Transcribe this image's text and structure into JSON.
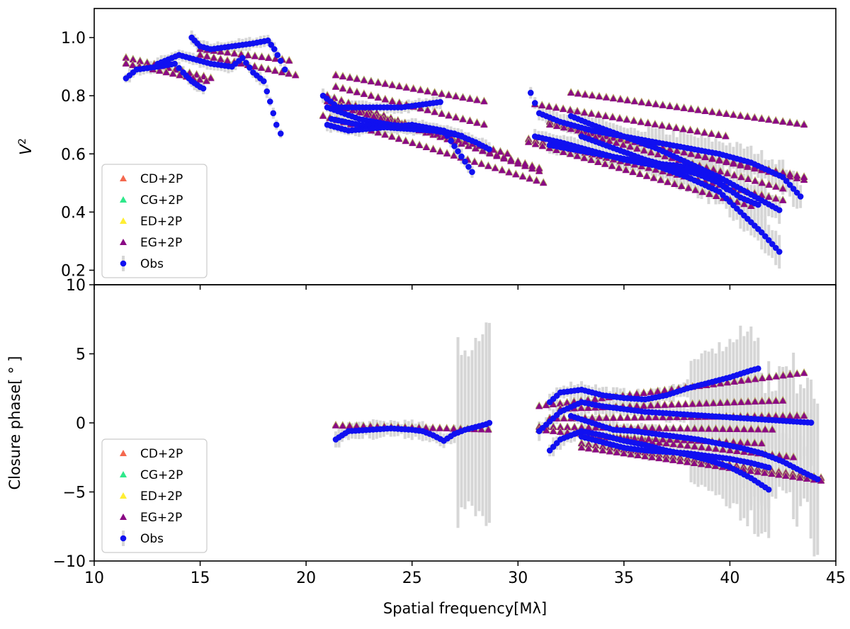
{
  "chart_data": [
    {
      "type": "scatter",
      "panel": "top",
      "ylabel_main": "V",
      "ylabel_sup": "2",
      "xlim": [
        10,
        45
      ],
      "ylim": [
        0.15,
        1.1
      ],
      "yticks": [
        0.2,
        0.4,
        0.6,
        0.8,
        1.0
      ],
      "ytick_labels": [
        "0.2",
        "0.4",
        "0.6",
        "0.8",
        "1.0"
      ],
      "grid": false,
      "legend_position": "bottom-left",
      "legend": [
        {
          "label": "CD+2P",
          "marker": "triangle",
          "color": "#f4684e"
        },
        {
          "label": "CG+2P",
          "marker": "triangle",
          "color": "#2ee88a"
        },
        {
          "label": "ED+2P",
          "marker": "triangle",
          "color": "#ffee33"
        },
        {
          "label": "EG+2P",
          "marker": "triangle",
          "color": "#8a0a84"
        },
        {
          "label": "Obs",
          "marker": "circle",
          "color": "#1010f0"
        }
      ],
      "model_tracks": [
        {
          "x0": 11.5,
          "x1": 15.5,
          "y0": 0.93,
          "y1": 0.86
        },
        {
          "x0": 11.5,
          "x1": 15.3,
          "y0": 0.91,
          "y1": 0.85
        },
        {
          "x0": 15.0,
          "x1": 19.5,
          "y0": 0.94,
          "y1": 0.87
        },
        {
          "x0": 15.0,
          "x1": 19.2,
          "y0": 0.96,
          "y1": 0.92
        },
        {
          "x0": 21.4,
          "x1": 28.4,
          "y0": 0.87,
          "y1": 0.78
        },
        {
          "x0": 21.4,
          "x1": 28.4,
          "y0": 0.83,
          "y1": 0.7
        },
        {
          "x0": 21.0,
          "x1": 31.0,
          "y0": 0.8,
          "y1": 0.54
        },
        {
          "x0": 21.0,
          "x1": 31.0,
          "y0": 0.78,
          "y1": 0.55
        },
        {
          "x0": 21.2,
          "x1": 29.5,
          "y0": 0.77,
          "y1": 0.6
        },
        {
          "x0": 20.8,
          "x1": 31.2,
          "y0": 0.73,
          "y1": 0.5
        },
        {
          "x0": 32.5,
          "x1": 43.5,
          "y0": 0.81,
          "y1": 0.7
        },
        {
          "x0": 30.8,
          "x1": 39.8,
          "y0": 0.77,
          "y1": 0.66
        },
        {
          "x0": 31.5,
          "x1": 43.5,
          "y0": 0.71,
          "y1": 0.51
        },
        {
          "x0": 31.5,
          "x1": 43.5,
          "y0": 0.7,
          "y1": 0.52
        },
        {
          "x0": 33.0,
          "x1": 42.5,
          "y0": 0.67,
          "y1": 0.48
        },
        {
          "x0": 30.5,
          "x1": 42.5,
          "y0": 0.65,
          "y1": 0.44
        },
        {
          "x0": 30.5,
          "x1": 41.0,
          "y0": 0.64,
          "y1": 0.42
        }
      ],
      "obs_tracks": [
        {
          "x": [
            11.5,
            12.0,
            13.0,
            13.8,
            14.2,
            14.6,
            15.0,
            15.3
          ],
          "y": [
            0.86,
            0.89,
            0.9,
            0.91,
            0.88,
            0.85,
            0.83,
            0.82
          ]
        },
        {
          "x": [
            14.6,
            15.0,
            15.5,
            16.5,
            17.5,
            18.2,
            18.5,
            18.8,
            19.2
          ],
          "y": [
            1.0,
            0.97,
            0.96,
            0.97,
            0.98,
            0.99,
            0.96,
            0.92,
            0.86
          ]
        },
        {
          "x": [
            13.0,
            14.0,
            15.5,
            16.5,
            17.0,
            17.5,
            18.0,
            18.3,
            18.6,
            19.0
          ],
          "y": [
            0.91,
            0.94,
            0.91,
            0.9,
            0.93,
            0.88,
            0.85,
            0.78,
            0.7,
            0.64
          ]
        },
        {
          "x": [
            20.8,
            21.5,
            22.5,
            23.5,
            24.5,
            25.5,
            26.5
          ],
          "y": [
            0.8,
            0.76,
            0.76,
            0.76,
            0.76,
            0.77,
            0.78
          ]
        },
        {
          "x": [
            21.0,
            22.5,
            24.0,
            25.5,
            27.0,
            28.0,
            28.8
          ],
          "y": [
            0.76,
            0.72,
            0.7,
            0.69,
            0.67,
            0.64,
            0.61
          ]
        },
        {
          "x": [
            21.2,
            22.5,
            24.0,
            26.0,
            27.5
          ],
          "y": [
            0.72,
            0.7,
            0.69,
            0.68,
            0.66
          ]
        },
        {
          "x": [
            21.0,
            22.0,
            23.5,
            25.0,
            26.5,
            28.0
          ],
          "y": [
            0.7,
            0.68,
            0.69,
            0.7,
            0.68,
            0.52
          ]
        },
        {
          "x": [
            30.6,
            31.0,
            32.0,
            33.5,
            35.0,
            36.5,
            38.0,
            39.5,
            41.0,
            42.5,
            43.5
          ],
          "y": [
            0.81,
            0.74,
            0.71,
            0.68,
            0.66,
            0.64,
            0.62,
            0.6,
            0.57,
            0.52,
            0.44
          ]
        },
        {
          "x": [
            32.5,
            33.5,
            35.0,
            36.5,
            38.0,
            39.5,
            41.0,
            42.5
          ],
          "y": [
            0.73,
            0.7,
            0.66,
            0.62,
            0.57,
            0.52,
            0.46,
            0.4
          ]
        },
        {
          "x": [
            30.8,
            32.0,
            33.5,
            35.0,
            36.5,
            38.0,
            39.5,
            40.5,
            41.5,
            42.5
          ],
          "y": [
            0.66,
            0.64,
            0.61,
            0.58,
            0.56,
            0.52,
            0.47,
            0.4,
            0.33,
            0.25
          ]
        },
        {
          "x": [
            31.5,
            33.0,
            34.5,
            36.0,
            37.5,
            38.8,
            40.0
          ],
          "y": [
            0.63,
            0.61,
            0.59,
            0.57,
            0.56,
            0.54,
            0.47
          ]
        },
        {
          "x": [
            33.0,
            34.5,
            36.0,
            37.5,
            38.5,
            39.5,
            40.5,
            41.5
          ],
          "y": [
            0.66,
            0.62,
            0.58,
            0.55,
            0.53,
            0.5,
            0.45,
            0.42
          ]
        }
      ]
    },
    {
      "type": "scatter",
      "panel": "bottom",
      "ylabel": "Closure phase[ ° ]",
      "xlabel": "Spatial frequency[Mλ]",
      "xlim": [
        10,
        45
      ],
      "ylim": [
        -10,
        10
      ],
      "xticks": [
        10,
        15,
        20,
        25,
        30,
        35,
        40,
        45
      ],
      "xtick_labels": [
        "10",
        "15",
        "20",
        "25",
        "30",
        "35",
        "40",
        "45"
      ],
      "yticks": [
        -10,
        -5,
        0,
        5,
        10
      ],
      "ytick_labels": [
        "−10",
        "−5",
        "0",
        "5",
        "10"
      ],
      "grid": false,
      "legend_position": "bottom-left",
      "legend": [
        {
          "label": "CD+2P",
          "marker": "triangle",
          "color": "#f4684e"
        },
        {
          "label": "CG+2P",
          "marker": "triangle",
          "color": "#2ee88a"
        },
        {
          "label": "ED+2P",
          "marker": "triangle",
          "color": "#ffee33"
        },
        {
          "label": "EG+2P",
          "marker": "triangle",
          "color": "#8a0a84"
        },
        {
          "label": "Obs",
          "marker": "circle",
          "color": "#1010f0"
        }
      ],
      "model_tracks": [
        {
          "x0": 21.4,
          "x1": 28.6,
          "y0": -0.2,
          "y1": -0.5
        },
        {
          "x0": 31.0,
          "x1": 43.5,
          "y0": 1.2,
          "y1": 3.6
        },
        {
          "x0": 32.0,
          "x1": 42.5,
          "y0": 1.0,
          "y1": 1.6
        },
        {
          "x0": 31.5,
          "x1": 43.5,
          "y0": 0.3,
          "y1": 0.5
        },
        {
          "x0": 31.0,
          "x1": 42.0,
          "y0": -0.3,
          "y1": -0.5
        },
        {
          "x0": 31.0,
          "x1": 43.0,
          "y0": -0.5,
          "y1": -2.5
        },
        {
          "x0": 33.0,
          "x1": 44.3,
          "y0": -1.5,
          "y1": -4.0
        },
        {
          "x0": 33.5,
          "x1": 41.5,
          "y0": -1.0,
          "y1": -1.5
        },
        {
          "x0": 33.0,
          "x1": 44.3,
          "y0": -1.8,
          "y1": -4.2
        }
      ],
      "obs_tracks": [
        {
          "x": [
            21.4,
            22.0,
            23.0,
            24.0,
            25.0,
            25.5,
            26.0,
            26.5,
            27.0,
            27.5,
            28.0,
            28.5,
            28.8
          ],
          "y": [
            -1.2,
            -0.6,
            -0.5,
            -0.4,
            -0.5,
            -0.6,
            -0.9,
            -1.3,
            -0.8,
            -0.5,
            -0.3,
            -0.1,
            0.1
          ]
        },
        {
          "x": [
            31.5,
            32.0,
            33.0,
            34.0,
            35.0,
            36.0,
            37.0,
            38.0,
            39.0,
            40.0,
            41.0,
            41.5
          ],
          "y": [
            1.5,
            2.2,
            2.4,
            2.0,
            1.8,
            1.7,
            2.0,
            2.5,
            2.9,
            3.3,
            3.8,
            4.0
          ]
        },
        {
          "x": [
            31.5,
            32.0,
            33.0,
            34.0,
            35.0,
            36.0,
            37.0,
            38.0,
            39.0,
            40.0,
            41.0,
            42.0
          ],
          "y": [
            -2.0,
            -1.2,
            -0.6,
            -0.9,
            -1.3,
            -1.6,
            -2.0,
            -2.3,
            -2.7,
            -3.2,
            -4.0,
            -5.0
          ]
        },
        {
          "x": [
            31.0,
            32.0,
            33.0,
            34.0,
            35.0,
            36.0,
            37.0,
            38.0,
            39.0,
            40.0,
            41.0,
            42.0,
            43.0,
            44.0
          ],
          "y": [
            -0.6,
            0.8,
            1.5,
            1.2,
            1.0,
            0.8,
            0.7,
            0.6,
            0.5,
            0.4,
            0.3,
            0.2,
            0.1,
            0.0
          ]
        },
        {
          "x": [
            32.5,
            33.5,
            34.5,
            35.5,
            36.5,
            37.5,
            38.5,
            39.5,
            40.5,
            41.5,
            42.5,
            43.5,
            44.3
          ],
          "y": [
            0.5,
            0.0,
            -0.5,
            -0.6,
            -0.8,
            -1.0,
            -1.2,
            -1.5,
            -1.8,
            -2.2,
            -2.8,
            -3.6,
            -4.2
          ]
        },
        {
          "x": [
            33.0,
            34.0,
            35.0,
            36.0,
            37.0,
            38.0,
            39.0,
            40.0,
            41.0,
            42.0
          ],
          "y": [
            -1.0,
            -1.4,
            -1.8,
            -2.0,
            -2.1,
            -2.2,
            -2.4,
            -2.6,
            -2.9,
            -3.3
          ]
        }
      ]
    }
  ]
}
